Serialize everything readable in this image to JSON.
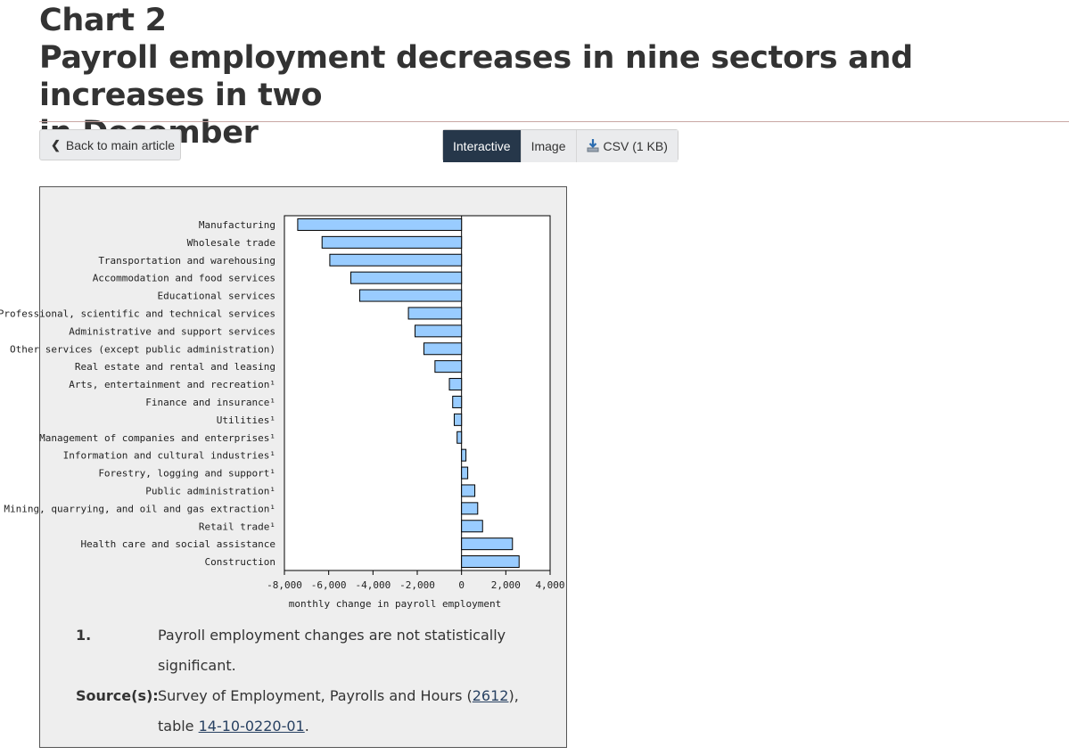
{
  "header": {
    "chart_label": "Chart 2",
    "title_line2": "Payroll employment decreases in nine sectors and increases in two",
    "title_line3": "in December"
  },
  "nav": {
    "back_label": "Back to main article",
    "tabs": [
      {
        "label": "Interactive",
        "active": true
      },
      {
        "label": "Image",
        "active": false
      },
      {
        "label": "CSV (1 KB)",
        "active": false,
        "icon": "download-icon"
      }
    ]
  },
  "chart_data": {
    "type": "bar",
    "orientation": "horizontal",
    "categories": [
      "Manufacturing",
      "Wholesale trade",
      "Transportation and warehousing",
      "Accommodation and food services",
      "Educational services",
      "Professional, scientific and technical services",
      "Administrative and support services",
      "Other services (except public administration)",
      "Real estate and rental and leasing",
      "Arts, entertainment and recreation¹",
      "Finance and insurance¹",
      "Utilities¹",
      "Management of companies and enterprises¹",
      "Information and cultural industries¹",
      "Forestry, logging and support¹",
      "Public administration¹",
      "Mining, quarrying, and oil and gas extraction¹",
      "Retail trade¹",
      "Health care and social assistance",
      "Construction"
    ],
    "values": [
      -7400,
      -6300,
      -5950,
      -5000,
      -4600,
      -2400,
      -2100,
      -1700,
      -1200,
      -550,
      -400,
      -330,
      -200,
      200,
      280,
      600,
      730,
      950,
      2300,
      2600
    ],
    "xlabel": "monthly change in payroll employment",
    "xlim": [
      -8000,
      4000
    ],
    "xticks": [
      -8000,
      -6000,
      -4000,
      -2000,
      0,
      2000,
      4000
    ],
    "xtick_labels": [
      "-8,000",
      "-6,000",
      "-4,000",
      "-2,000",
      "0",
      "2,000",
      "4,000"
    ],
    "bar_color": "#99ccff",
    "bar_stroke": "#000000"
  },
  "footnotes": {
    "note_key": "1.",
    "note_text_line1": "Payroll employment changes are not statistically",
    "note_text_line2": "significant.",
    "source_key": "Source(s):",
    "source_text_a": "Survey of Employment, Payrolls and Hours (",
    "source_link1": "2612",
    "source_text_b": "),",
    "source_text_c": "table ",
    "source_link2": "14-10-0220-01",
    "source_text_d": "."
  }
}
